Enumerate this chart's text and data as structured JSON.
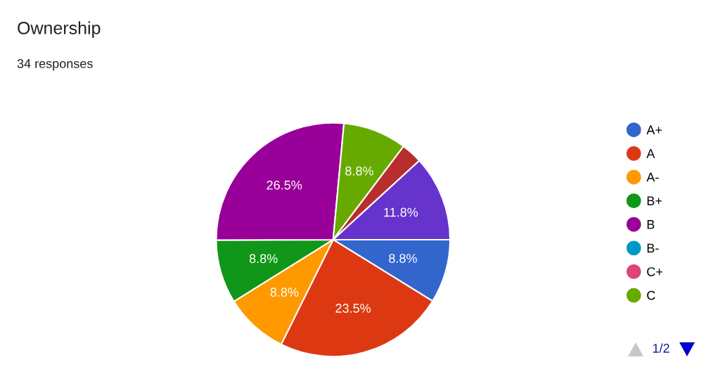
{
  "chart_data": {
    "type": "pie",
    "title": "Ownership",
    "subtitle": "34 responses",
    "categories": [
      "A+",
      "A",
      "A-",
      "B+",
      "B",
      "B-",
      "C+",
      "C",
      null,
      null
    ],
    "values": [
      8.8,
      23.5,
      8.8,
      8.8,
      26.5,
      0,
      0,
      8.8,
      2.9,
      11.8
    ],
    "colors": [
      "#3366cc",
      "#dc3912",
      "#ff9900",
      "#109618",
      "#990099",
      "#0099c6",
      "#dd4477",
      "#66aa00",
      "#b82e2e",
      "#6633cc"
    ],
    "value_labels": [
      "8.8%",
      "23.5%",
      "8.8%",
      "8.8%",
      "26.5%",
      null,
      null,
      "8.8%",
      null,
      "11.8%"
    ],
    "legend": "right",
    "annotations": [
      "1/2"
    ]
  }
}
